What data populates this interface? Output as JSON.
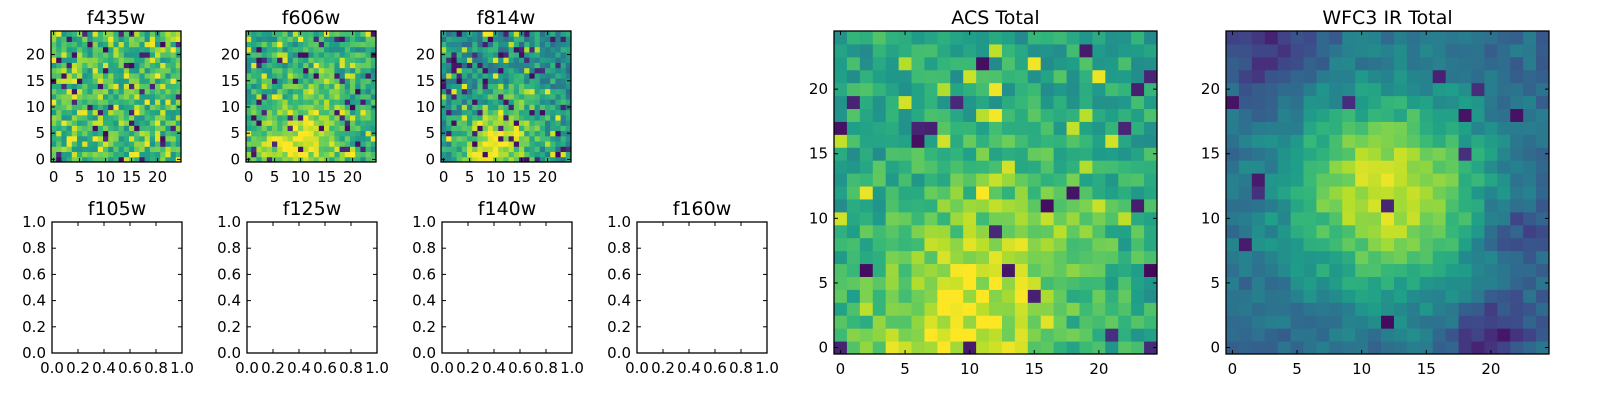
{
  "chart_data": [
    {
      "type": "heatmap",
      "title": "f435w",
      "xlabel": "",
      "ylabel": "",
      "xlim": [
        -0.5,
        24.5
      ],
      "ylim": [
        -0.5,
        24.5
      ],
      "xticks": [
        "0",
        "5",
        "10",
        "15",
        "20"
      ],
      "yticks": [
        "0",
        "5",
        "10",
        "15",
        "20"
      ],
      "colormap": "viridis",
      "pattern": {
        "base": 0.68,
        "noise": 0.34,
        "dark_frac": 0.07,
        "light_frac": 0.14,
        "blobs": [],
        "holes": []
      }
    },
    {
      "type": "heatmap",
      "title": "f606w",
      "xlabel": "",
      "ylabel": "",
      "xlim": [
        -0.5,
        24.5
      ],
      "ylim": [
        -0.5,
        24.5
      ],
      "xticks": [
        "0",
        "5",
        "10",
        "15",
        "20"
      ],
      "yticks": [
        "0",
        "5",
        "10",
        "15",
        "20"
      ],
      "colormap": "viridis",
      "pattern": {
        "base": 0.62,
        "noise": 0.32,
        "dark_frac": 0.07,
        "light_frac": 0.09,
        "blobs": [
          {
            "cx": 9,
            "cy": 2,
            "r": 5,
            "amp": 0.32
          },
          {
            "cx": 13,
            "cy": 10,
            "r": 4,
            "amp": 0.16
          }
        ],
        "holes": []
      }
    },
    {
      "type": "heatmap",
      "title": "f814w",
      "xlabel": "",
      "ylabel": "",
      "xlim": [
        -0.5,
        24.5
      ],
      "ylim": [
        -0.5,
        24.5
      ],
      "xticks": [
        "0",
        "5",
        "10",
        "15",
        "20"
      ],
      "yticks": [
        "0",
        "5",
        "10",
        "15",
        "20"
      ],
      "colormap": "viridis",
      "pattern": {
        "base": 0.5,
        "noise": 0.34,
        "dark_frac": 0.09,
        "light_frac": 0.06,
        "blobs": [
          {
            "cx": 9,
            "cy": 2,
            "r": 4,
            "amp": 0.45
          },
          {
            "cx": 14,
            "cy": 8,
            "r": 5,
            "amp": 0.2
          }
        ],
        "holes": []
      }
    },
    {
      "type": "empty",
      "title": "f105w",
      "xlim": [
        0,
        1
      ],
      "ylim": [
        0,
        1
      ],
      "xticks": [
        "0.0",
        "0.2",
        "0.4",
        "0.6",
        "0.8",
        "1.0"
      ],
      "yticks": [
        "0.0",
        "0.2",
        "0.4",
        "0.6",
        "0.8",
        "1.0"
      ]
    },
    {
      "type": "empty",
      "title": "f125w",
      "xlim": [
        0,
        1
      ],
      "ylim": [
        0,
        1
      ],
      "xticks": [
        "0.0",
        "0.2",
        "0.4",
        "0.6",
        "0.8",
        "1.0"
      ],
      "yticks": [
        "0.0",
        "0.2",
        "0.4",
        "0.6",
        "0.8",
        "1.0"
      ]
    },
    {
      "type": "empty",
      "title": "f140w",
      "xlim": [
        0,
        1
      ],
      "ylim": [
        0,
        1
      ],
      "xticks": [
        "0.0",
        "0.2",
        "0.4",
        "0.6",
        "0.8",
        "1.0"
      ],
      "yticks": [
        "0.0",
        "0.2",
        "0.4",
        "0.6",
        "0.8",
        "1.0"
      ]
    },
    {
      "type": "empty",
      "title": "f160w",
      "xlim": [
        0,
        1
      ],
      "ylim": [
        0,
        1
      ],
      "xticks": [
        "0.0",
        "0.2",
        "0.4",
        "0.6",
        "0.8",
        "1.0"
      ],
      "yticks": [
        "0.0",
        "0.2",
        "0.4",
        "0.6",
        "0.8",
        "1.0"
      ]
    },
    {
      "type": "heatmap",
      "title": "ACS Total",
      "xlabel": "",
      "ylabel": "",
      "xlim": [
        -0.5,
        24.5
      ],
      "ylim": [
        -0.5,
        24.5
      ],
      "xticks": [
        "0",
        "5",
        "10",
        "15",
        "20"
      ],
      "yticks": [
        "0",
        "5",
        "10",
        "15",
        "20"
      ],
      "colormap": "viridis",
      "pattern": {
        "base": 0.6,
        "noise": 0.26,
        "dark_frac": 0.04,
        "light_frac": 0.05,
        "blobs": [
          {
            "cx": 9,
            "cy": 1,
            "r": 5,
            "amp": 0.32
          },
          {
            "cx": 14,
            "cy": 9,
            "r": 5,
            "amp": 0.18
          }
        ],
        "holes": []
      }
    },
    {
      "type": "heatmap",
      "title": "WFC3 IR Total",
      "xlabel": "",
      "ylabel": "",
      "xlim": [
        -0.5,
        24.5
      ],
      "ylim": [
        -0.5,
        24.5
      ],
      "xticks": [
        "0",
        "5",
        "10",
        "15",
        "20"
      ],
      "yticks": [
        "0",
        "5",
        "10",
        "15",
        "20"
      ],
      "colormap": "viridis",
      "pattern": {
        "base": 0.34,
        "noise": 0.16,
        "dark_frac": 0.03,
        "light_frac": 0.0,
        "blobs": [
          {
            "cx": 12,
            "cy": 12,
            "r": 5.5,
            "amp": 0.6
          }
        ],
        "holes": [
          {
            "cx": 3,
            "cy": 23,
            "r": 2.5,
            "amp": 0.22
          },
          {
            "cx": 20,
            "cy": 1,
            "r": 2,
            "amp": 0.25
          },
          {
            "cx": 22,
            "cy": 9,
            "r": 2,
            "amp": 0.18
          }
        ]
      }
    }
  ]
}
